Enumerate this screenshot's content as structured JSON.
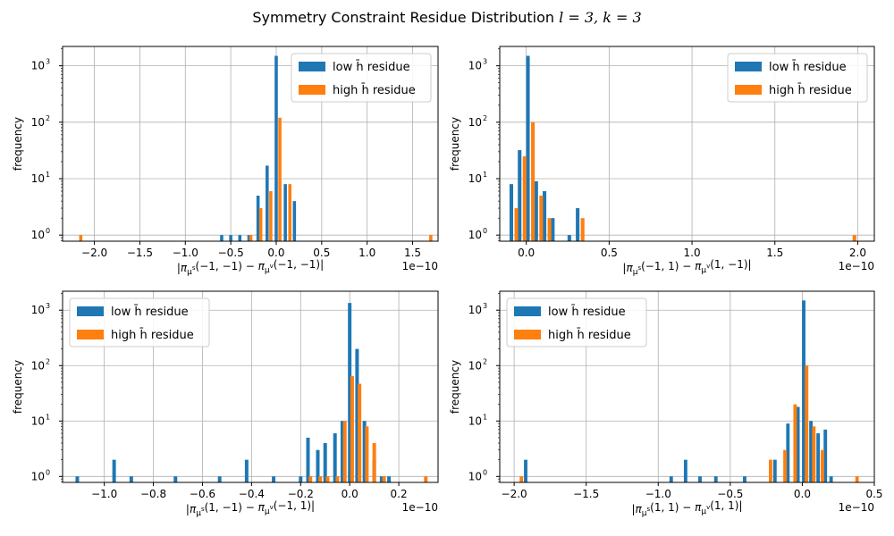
{
  "figure": {
    "title": "Symmetry Constraint Residue Distribution",
    "title_math": "l = 3, k = 3",
    "colors": {
      "low": "#1f77b4",
      "high": "#ff7f0e",
      "grid": "#b0b0b0"
    }
  },
  "chart_data": [
    {
      "type": "bar",
      "scale_y": "log",
      "grid": true,
      "xlabel": "|π_{μ^s}(−1, −1) − π_{μ^v}(−1, −1)|",
      "ylabel": "frequency",
      "offset_label": "1e−10",
      "xlim": [
        -2.35,
        1.78
      ],
      "ylim": [
        0.78,
        2200
      ],
      "xticks": [
        -2.0,
        -1.5,
        -1.0,
        -0.5,
        0.0,
        0.5,
        1.0,
        1.5
      ],
      "xtick_labels": [
        "−2.0",
        "−1.5",
        "−1.0",
        "−0.5",
        "0.0",
        "0.5",
        "1.0",
        "1.5"
      ],
      "yticks": [
        1,
        10,
        100,
        1000
      ],
      "ytick_labels": [
        "10^0",
        "10^1",
        "10^2",
        "10^3"
      ],
      "bar_width": 0.035,
      "legend_position": "upper right",
      "series": [
        {
          "name": "low h̄ residue",
          "x": [
            -0.6,
            -0.5,
            -0.4,
            -0.3,
            -0.2,
            -0.1,
            0.0,
            0.1,
            0.2
          ],
          "values": [
            1,
            1,
            1,
            1,
            5,
            17,
            1500,
            8,
            4
          ]
        },
        {
          "name": "high h̄ residue",
          "x": [
            -2.15,
            -0.28,
            -0.17,
            -0.06,
            0.04,
            0.15,
            1.7
          ],
          "values": [
            1,
            1,
            3,
            6,
            120,
            8,
            1
          ]
        }
      ]
    },
    {
      "type": "bar",
      "scale_y": "log",
      "grid": true,
      "xlabel": "|π_{μ^s}(−1, 1) − π_{μ^v}(1, −1)|",
      "ylabel": "frequency",
      "offset_label": "1e−10",
      "xlim": [
        -0.16,
        2.1
      ],
      "ylim": [
        0.78,
        2200
      ],
      "xticks": [
        0.0,
        0.5,
        1.0,
        1.5,
        2.0
      ],
      "xtick_labels": [
        "0.0",
        "0.5",
        "1.0",
        "1.5",
        "2.0"
      ],
      "yticks": [
        1,
        10,
        100,
        1000
      ],
      "ytick_labels": [
        "10^0",
        "10^1",
        "10^2",
        "10^3"
      ],
      "bar_width": 0.022,
      "legend_position": "upper right",
      "series": [
        {
          "name": "low h̄ residue",
          "x": [
            -0.09,
            -0.04,
            0.01,
            0.06,
            0.11,
            0.16,
            0.26,
            0.31
          ],
          "values": [
            8,
            32,
            1500,
            9,
            6,
            2,
            1,
            3
          ]
        },
        {
          "name": "high h̄ residue",
          "x": [
            -0.06,
            -0.01,
            0.04,
            0.09,
            0.14,
            0.34,
            1.98
          ],
          "values": [
            3,
            25,
            100,
            5,
            2,
            2,
            1
          ]
        }
      ]
    },
    {
      "type": "bar",
      "scale_y": "log",
      "grid": true,
      "xlabel": "|π_{μ^s}(1, −1) − π_{μ^v}(−1, 1)|",
      "ylabel": "frequency",
      "offset_label": "1e−10",
      "xlim": [
        -1.17,
        0.36
      ],
      "ylim": [
        0.78,
        2200
      ],
      "xticks": [
        -1.0,
        -0.8,
        -0.6,
        -0.4,
        -0.2,
        0.0,
        0.2
      ],
      "xtick_labels": [
        "−1.0",
        "−0.8",
        "−0.6",
        "−0.4",
        "−0.2",
        "0.0",
        "0.2"
      ],
      "yticks": [
        1,
        10,
        100,
        1000
      ],
      "ytick_labels": [
        "10^0",
        "10^1",
        "10^2",
        "10^3"
      ],
      "bar_width": 0.0145,
      "legend_position": "upper left",
      "series": [
        {
          "name": "low h̄ residue",
          "x": [
            -1.11,
            -0.96,
            -0.89,
            -0.71,
            -0.53,
            -0.42,
            -0.31,
            -0.2,
            -0.17,
            -0.13,
            -0.1,
            -0.06,
            -0.03,
            0.0,
            0.03,
            0.06,
            0.1,
            0.13,
            0.16
          ],
          "values": [
            1,
            2,
            1,
            1,
            1,
            2,
            1,
            1,
            5,
            3,
            4,
            6,
            10,
            1350,
            200,
            10,
            2,
            1,
            1
          ]
        },
        {
          "name": "high h̄ residue",
          "x": [
            -0.16,
            -0.12,
            -0.09,
            -0.05,
            -0.02,
            0.01,
            0.04,
            0.07,
            0.1,
            0.14,
            0.31
          ],
          "values": [
            1,
            1,
            1,
            1,
            10,
            65,
            47,
            8,
            4,
            1,
            1
          ]
        }
      ]
    },
    {
      "type": "bar",
      "scale_y": "log",
      "grid": true,
      "xlabel": "|π_{μ^s}(1, 1) − π_{μ^v}(1, 1)|",
      "ylabel": "frequency",
      "offset_label": "1e−10",
      "xlim": [
        -2.1,
        0.5
      ],
      "ylim": [
        0.78,
        2200
      ],
      "xticks": [
        -2.0,
        -1.5,
        -1.0,
        -0.5,
        0.0,
        0.5
      ],
      "xtick_labels": [
        "−2.0",
        "−1.5",
        "−1.0",
        "−0.5",
        "0.0",
        "0.5"
      ],
      "yticks": [
        1,
        10,
        100,
        1000
      ],
      "ytick_labels": [
        "10^0",
        "10^1",
        "10^2",
        "10^3"
      ],
      "bar_width": 0.024,
      "legend_position": "upper left",
      "series": [
        {
          "name": "low h̄ residue",
          "x": [
            -1.92,
            -0.91,
            -0.81,
            -0.71,
            -0.6,
            -0.4,
            -0.19,
            -0.1,
            -0.03,
            0.01,
            0.06,
            0.11,
            0.16,
            0.2
          ],
          "values": [
            2,
            1,
            2,
            1,
            1,
            1,
            2,
            9,
            18,
            1500,
            10,
            6,
            7,
            1
          ]
        },
        {
          "name": "high h̄ residue",
          "x": [
            -1.95,
            -0.22,
            -0.12,
            -0.05,
            0.03,
            0.08,
            0.14,
            0.38
          ],
          "values": [
            1,
            2,
            3,
            20,
            100,
            8,
            3,
            1
          ]
        }
      ]
    }
  ]
}
